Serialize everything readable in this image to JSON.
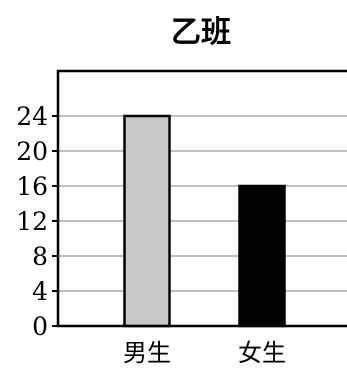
{
  "chart_data": {
    "type": "bar",
    "title": "乙班",
    "categories": [
      "男生",
      "女生"
    ],
    "values": [
      24,
      16
    ],
    "colors": [
      "#c8c8c8",
      "#000000"
    ],
    "bar_stroke": "#000000",
    "xlabel": "",
    "ylabel": "",
    "ylim": [
      0,
      28
    ],
    "yticks": [
      0,
      4,
      8,
      12,
      16,
      20,
      24
    ],
    "grid": true,
    "grid_color": "#9a9a9a"
  }
}
